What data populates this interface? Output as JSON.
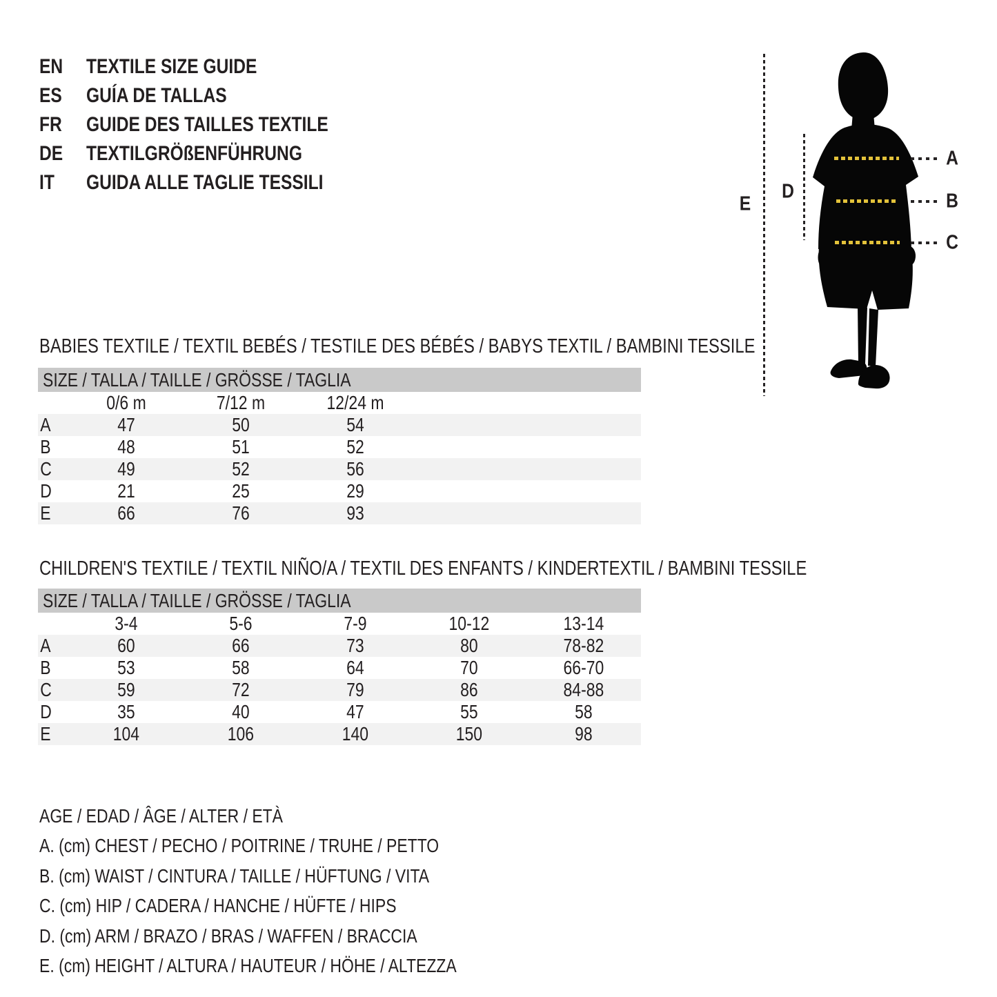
{
  "header": {
    "languages": [
      {
        "code": "EN",
        "title": "TEXTILE SIZE GUIDE"
      },
      {
        "code": "ES",
        "title": "GUÍA DE TALLAS"
      },
      {
        "code": "FR",
        "title": "GUIDE DES TAILLES TEXTILE"
      },
      {
        "code": "DE",
        "title": "TEXTILGRÖßENFÜHRUNG"
      },
      {
        "code": "IT",
        "title": "GUIDA ALLE TAGLIE TESSILI"
      }
    ]
  },
  "figure": {
    "measure_labels": {
      "a": "A",
      "b": "B",
      "c": "C",
      "d": "D",
      "e": "E"
    },
    "colors": {
      "silhouette": "#060606",
      "yellow_dots": "#e3c23a",
      "black_dots": "#262324"
    }
  },
  "babies": {
    "title": "BABIES TEXTILE / TEXTIL BEBÉS / TESTILE DES BÉBÉS / BABYS TEXTIL / BAMBINI TESSILE",
    "table": {
      "size_header": "SIZE / TALLA / TAILLE / GRÖSSE / TAGLIA",
      "columns": [
        "0/6 m",
        "7/12 m",
        "12/24 m"
      ],
      "rows": [
        {
          "label": "A",
          "values": [
            "47",
            "50",
            "54"
          ]
        },
        {
          "label": "B",
          "values": [
            "48",
            "51",
            "52"
          ]
        },
        {
          "label": "C",
          "values": [
            "49",
            "52",
            "56"
          ]
        },
        {
          "label": "D",
          "values": [
            "21",
            "25",
            "29"
          ]
        },
        {
          "label": "E",
          "values": [
            "66",
            "76",
            "93"
          ]
        }
      ]
    }
  },
  "children": {
    "title": "CHILDREN'S TEXTILE / TEXTIL NIÑO/A / TEXTIL DES ENFANTS / KINDERTEXTIL / BAMBINI TESSILE",
    "table": {
      "size_header": "SIZE / TALLA / TAILLE / GRÖSSE / TAGLIA",
      "columns": [
        "3-4",
        "5-6",
        "7-9",
        "10-12",
        "13-14"
      ],
      "rows": [
        {
          "label": "A",
          "values": [
            "60",
            "66",
            "73",
            "80",
            "78-82"
          ]
        },
        {
          "label": "B",
          "values": [
            "53",
            "58",
            "64",
            "70",
            "66-70"
          ]
        },
        {
          "label": "C",
          "values": [
            "59",
            "72",
            "79",
            "86",
            "84-88"
          ]
        },
        {
          "label": "D",
          "values": [
            "35",
            "40",
            "47",
            "55",
            "58"
          ]
        },
        {
          "label": "E",
          "values": [
            "104",
            "106",
            "140",
            "150",
            "98"
          ]
        }
      ]
    }
  },
  "legend": {
    "lines": [
      "AGE / EDAD / ÂGE / ALTER / ETÀ",
      "A. (cm) CHEST / PECHO / POITRINE / TRUHE / PETTO",
      "B. (cm) WAIST / CINTURA / TAILLE / HÜFTUNG / VITA",
      "C. (cm) HIP / CADERA / HANCHE / HÜFTE / HIPS",
      "D. (cm) ARM / BRAZO / BRAS / WAFFEN / BRACCIA",
      "E. (cm) HEIGHT / ALTURA / HAUTEUR / HÖHE / ALTEZZA"
    ]
  }
}
